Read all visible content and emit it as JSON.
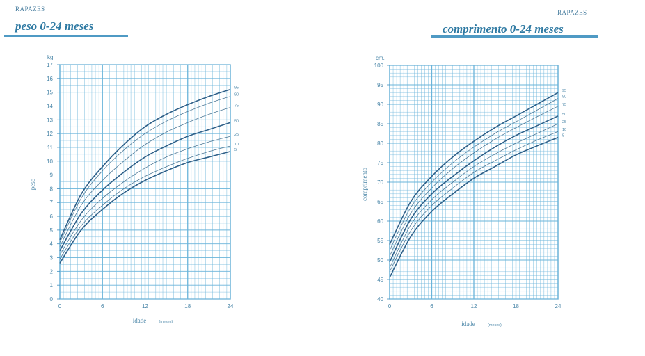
{
  "left": {
    "label_small": "RAPAZES",
    "title": "peso 0-24 meses"
  },
  "right": {
    "label_small": "RAPAZES",
    "title": "comprimento 0-24 meses"
  },
  "colors": {
    "grid": "#6ab4da",
    "axis": "#3f8fbf",
    "curve_major": "#2e5f88",
    "curve_minor": "#4d7896",
    "text": "#4a86a8"
  },
  "chart_data": [
    {
      "type": "line",
      "title": "peso 0-24 meses",
      "unit": "kg.",
      "xlabel": "idade",
      "xlabel_unit": "(meses)",
      "ylabel": "peso",
      "xlim": [
        0,
        24
      ],
      "ylim": [
        0,
        17
      ],
      "x_ticks": [
        0,
        6,
        12,
        18,
        24
      ],
      "y_ticks": [
        0,
        1,
        2,
        3,
        4,
        5,
        6,
        7,
        8,
        9,
        10,
        11,
        12,
        13,
        14,
        15,
        16,
        17
      ],
      "grid": true,
      "x": [
        0,
        3,
        6,
        9,
        12,
        15,
        18,
        21,
        24
      ],
      "series": [
        {
          "name": "95",
          "major": true,
          "values": [
            4.3,
            7.6,
            9.6,
            11.2,
            12.5,
            13.4,
            14.1,
            14.7,
            15.2
          ]
        },
        {
          "name": "90",
          "major": false,
          "values": [
            4.1,
            7.3,
            9.3,
            10.8,
            12.0,
            12.9,
            13.6,
            14.2,
            14.7
          ]
        },
        {
          "name": "75",
          "major": false,
          "values": [
            3.8,
            6.8,
            8.6,
            10.0,
            11.2,
            12.1,
            12.8,
            13.4,
            13.9
          ]
        },
        {
          "name": "50",
          "major": true,
          "values": [
            3.5,
            6.2,
            7.9,
            9.2,
            10.3,
            11.1,
            11.8,
            12.3,
            12.8
          ]
        },
        {
          "name": "25",
          "major": false,
          "values": [
            3.2,
            5.7,
            7.3,
            8.5,
            9.5,
            10.3,
            10.9,
            11.4,
            11.8
          ]
        },
        {
          "name": "10",
          "major": false,
          "values": [
            2.9,
            5.3,
            6.8,
            8.0,
            8.9,
            9.6,
            10.2,
            10.7,
            11.1
          ]
        },
        {
          "name": "5",
          "major": true,
          "values": [
            2.6,
            5.0,
            6.5,
            7.7,
            8.6,
            9.3,
            9.9,
            10.3,
            10.7
          ]
        }
      ]
    },
    {
      "type": "line",
      "title": "comprimento 0-24 meses",
      "unit": "cm.",
      "xlabel": "idade",
      "xlabel_unit": "(meses)",
      "ylabel": "comprimento",
      "xlim": [
        0,
        24
      ],
      "ylim": [
        40,
        100
      ],
      "x_ticks": [
        0,
        6,
        12,
        18,
        24
      ],
      "y_ticks": [
        40,
        45,
        50,
        55,
        60,
        65,
        70,
        75,
        80,
        85,
        90,
        95,
        100
      ],
      "grid": true,
      "x": [
        0,
        3,
        6,
        9,
        12,
        15,
        18,
        21,
        24
      ],
      "series": [
        {
          "name": "95",
          "major": true,
          "values": [
            54.0,
            65.0,
            71.5,
            76.5,
            80.5,
            84.0,
            87.0,
            90.0,
            93.0
          ]
        },
        {
          "name": "90",
          "major": false,
          "values": [
            52.5,
            63.5,
            70.0,
            75.0,
            79.0,
            82.5,
            85.5,
            88.5,
            91.5
          ]
        },
        {
          "name": "75",
          "major": false,
          "values": [
            51.0,
            62.0,
            68.5,
            73.5,
            77.5,
            81.0,
            84.0,
            86.8,
            89.5
          ]
        },
        {
          "name": "50",
          "major": true,
          "values": [
            49.5,
            60.5,
            67.0,
            71.5,
            75.5,
            79.0,
            82.0,
            84.5,
            87.0
          ]
        },
        {
          "name": "25",
          "major": false,
          "values": [
            48.0,
            59.0,
            65.5,
            70.0,
            74.0,
            77.2,
            80.0,
            82.5,
            85.0
          ]
        },
        {
          "name": "10",
          "major": false,
          "values": [
            47.0,
            57.5,
            64.0,
            68.5,
            72.5,
            75.5,
            78.3,
            80.8,
            83.0
          ]
        },
        {
          "name": "5",
          "major": true,
          "values": [
            45.5,
            56.0,
            62.5,
            67.0,
            71.0,
            74.0,
            77.0,
            79.3,
            81.5
          ]
        }
      ]
    }
  ]
}
